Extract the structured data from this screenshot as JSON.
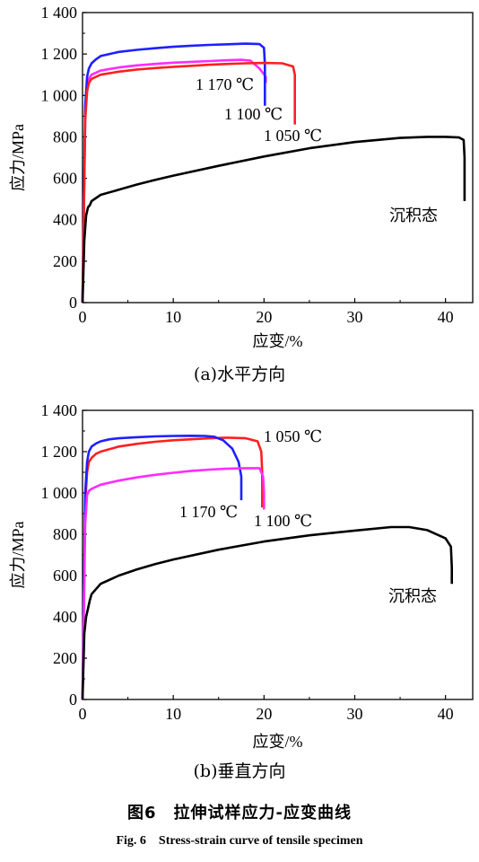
{
  "figure": {
    "subcaption_a": "(a)水平方向",
    "subcaption_b": "(b)垂直方向",
    "title_cn": "图6　拉伸试样应力-应变曲线",
    "title_en": "Fig. 6　Stress-strain curve of tensile specimen"
  },
  "chart_data": [
    {
      "type": "line",
      "panel": "a",
      "xlabel": "应变/%",
      "ylabel": "应力/MPa",
      "xlim": [
        0,
        43
      ],
      "ylim": [
        0,
        1400
      ],
      "xticks": [
        0,
        10,
        20,
        30,
        40
      ],
      "yticks": [
        0,
        200,
        400,
        600,
        800,
        1000,
        1200,
        1400
      ],
      "ytick_labels": [
        "0",
        "200",
        "400",
        "600",
        "800",
        "1 000",
        "1 200",
        "1 400"
      ],
      "grid": false,
      "series": [
        {
          "name": "1 170 ℃",
          "color": "#ff2bff",
          "x": [
            0,
            0.3,
            0.5,
            0.7,
            1,
            2,
            4,
            6,
            8,
            10,
            12,
            14,
            16,
            17.5,
            18.5,
            19.5,
            20.2,
            20.2
          ],
          "y": [
            0,
            900,
            1040,
            1080,
            1100,
            1120,
            1135,
            1145,
            1152,
            1158,
            1162,
            1166,
            1170,
            1172,
            1168,
            1130,
            1090,
            1060
          ]
        },
        {
          "name": "1 100 ℃",
          "color": "#1f1fff",
          "x": [
            0,
            0.3,
            0.5,
            0.7,
            1,
            1.5,
            2,
            4,
            6,
            8,
            10,
            12,
            14,
            16,
            18,
            19.5,
            20,
            20.1,
            20.1
          ],
          "y": [
            0,
            950,
            1090,
            1130,
            1155,
            1175,
            1190,
            1210,
            1220,
            1228,
            1235,
            1240,
            1244,
            1247,
            1250,
            1248,
            1230,
            1150,
            950
          ]
        },
        {
          "name": "1 050 ℃",
          "color": "#ff1f1f",
          "x": [
            0,
            0.3,
            0.5,
            0.7,
            1,
            2,
            4,
            6,
            8,
            10,
            12,
            14,
            16,
            18,
            20,
            22,
            23.2,
            23.4,
            23.4
          ],
          "y": [
            0,
            880,
            1020,
            1060,
            1080,
            1100,
            1115,
            1125,
            1132,
            1138,
            1143,
            1148,
            1152,
            1155,
            1157,
            1155,
            1140,
            1100,
            860
          ]
        },
        {
          "name": "沉积态",
          "color": "#000000",
          "x": [
            0,
            0.2,
            0.4,
            0.6,
            0.8,
            1,
            2,
            4,
            6,
            8,
            10,
            15,
            20,
            25,
            30,
            35,
            38,
            40,
            41.5,
            42,
            42.1,
            42.1
          ],
          "y": [
            0,
            300,
            420,
            460,
            470,
            490,
            520,
            545,
            570,
            592,
            613,
            660,
            705,
            745,
            775,
            795,
            800,
            800,
            797,
            785,
            700,
            490
          ]
        }
      ]
    },
    {
      "type": "line",
      "panel": "b",
      "xlabel": "应变/%",
      "ylabel": "应力/MPa",
      "xlim": [
        0,
        43
      ],
      "ylim": [
        0,
        1400
      ],
      "xticks": [
        0,
        10,
        20,
        30,
        40
      ],
      "yticks": [
        0,
        200,
        400,
        600,
        800,
        1000,
        1200,
        1400
      ],
      "ytick_labels": [
        "0",
        "200",
        "400",
        "600",
        "800",
        "1 000",
        "1 200",
        "1 400"
      ],
      "grid": false,
      "series": [
        {
          "name": "1 050 ℃",
          "color": "#ff1f1f",
          "x": [
            0,
            0.3,
            0.5,
            0.7,
            1,
            1.5,
            2,
            4,
            6,
            8,
            10,
            12,
            14,
            16,
            18,
            19.3,
            19.7,
            19.8,
            19.8
          ],
          "y": [
            0,
            950,
            1100,
            1150,
            1170,
            1190,
            1200,
            1225,
            1238,
            1248,
            1255,
            1260,
            1265,
            1268,
            1265,
            1250,
            1200,
            1100,
            930
          ]
        },
        {
          "name": "1 170 ℃",
          "color": "#1f1fff",
          "x": [
            0,
            0.3,
            0.5,
            0.7,
            1,
            1.5,
            2,
            3,
            4,
            6,
            8,
            10,
            12,
            13.5,
            14.5,
            15.5,
            16.5,
            17.2,
            17.5,
            17.5
          ],
          "y": [
            0,
            1000,
            1150,
            1200,
            1225,
            1240,
            1250,
            1260,
            1265,
            1270,
            1274,
            1276,
            1277,
            1276,
            1272,
            1255,
            1215,
            1150,
            1080,
            965
          ]
        },
        {
          "name": "1 100 ℃",
          "color": "#ff2bff",
          "x": [
            0,
            0.3,
            0.5,
            0.7,
            1,
            2,
            4,
            6,
            8,
            10,
            12,
            14,
            16,
            18,
            19.5,
            19.9,
            20,
            20
          ],
          "y": [
            0,
            850,
            990,
            1010,
            1020,
            1040,
            1060,
            1075,
            1088,
            1098,
            1107,
            1113,
            1118,
            1120,
            1120,
            1080,
            1000,
            920
          ]
        },
        {
          "name": "沉积态",
          "color": "#000000",
          "x": [
            0,
            0.2,
            0.4,
            0.6,
            0.8,
            1,
            2,
            4,
            6,
            8,
            10,
            15,
            20,
            25,
            30,
            34,
            36,
            38,
            40,
            40.6,
            40.7,
            40.7
          ],
          "y": [
            0,
            320,
            400,
            440,
            480,
            510,
            560,
            600,
            630,
            655,
            678,
            725,
            765,
            795,
            818,
            835,
            835,
            820,
            780,
            740,
            640,
            560
          ]
        }
      ]
    }
  ]
}
